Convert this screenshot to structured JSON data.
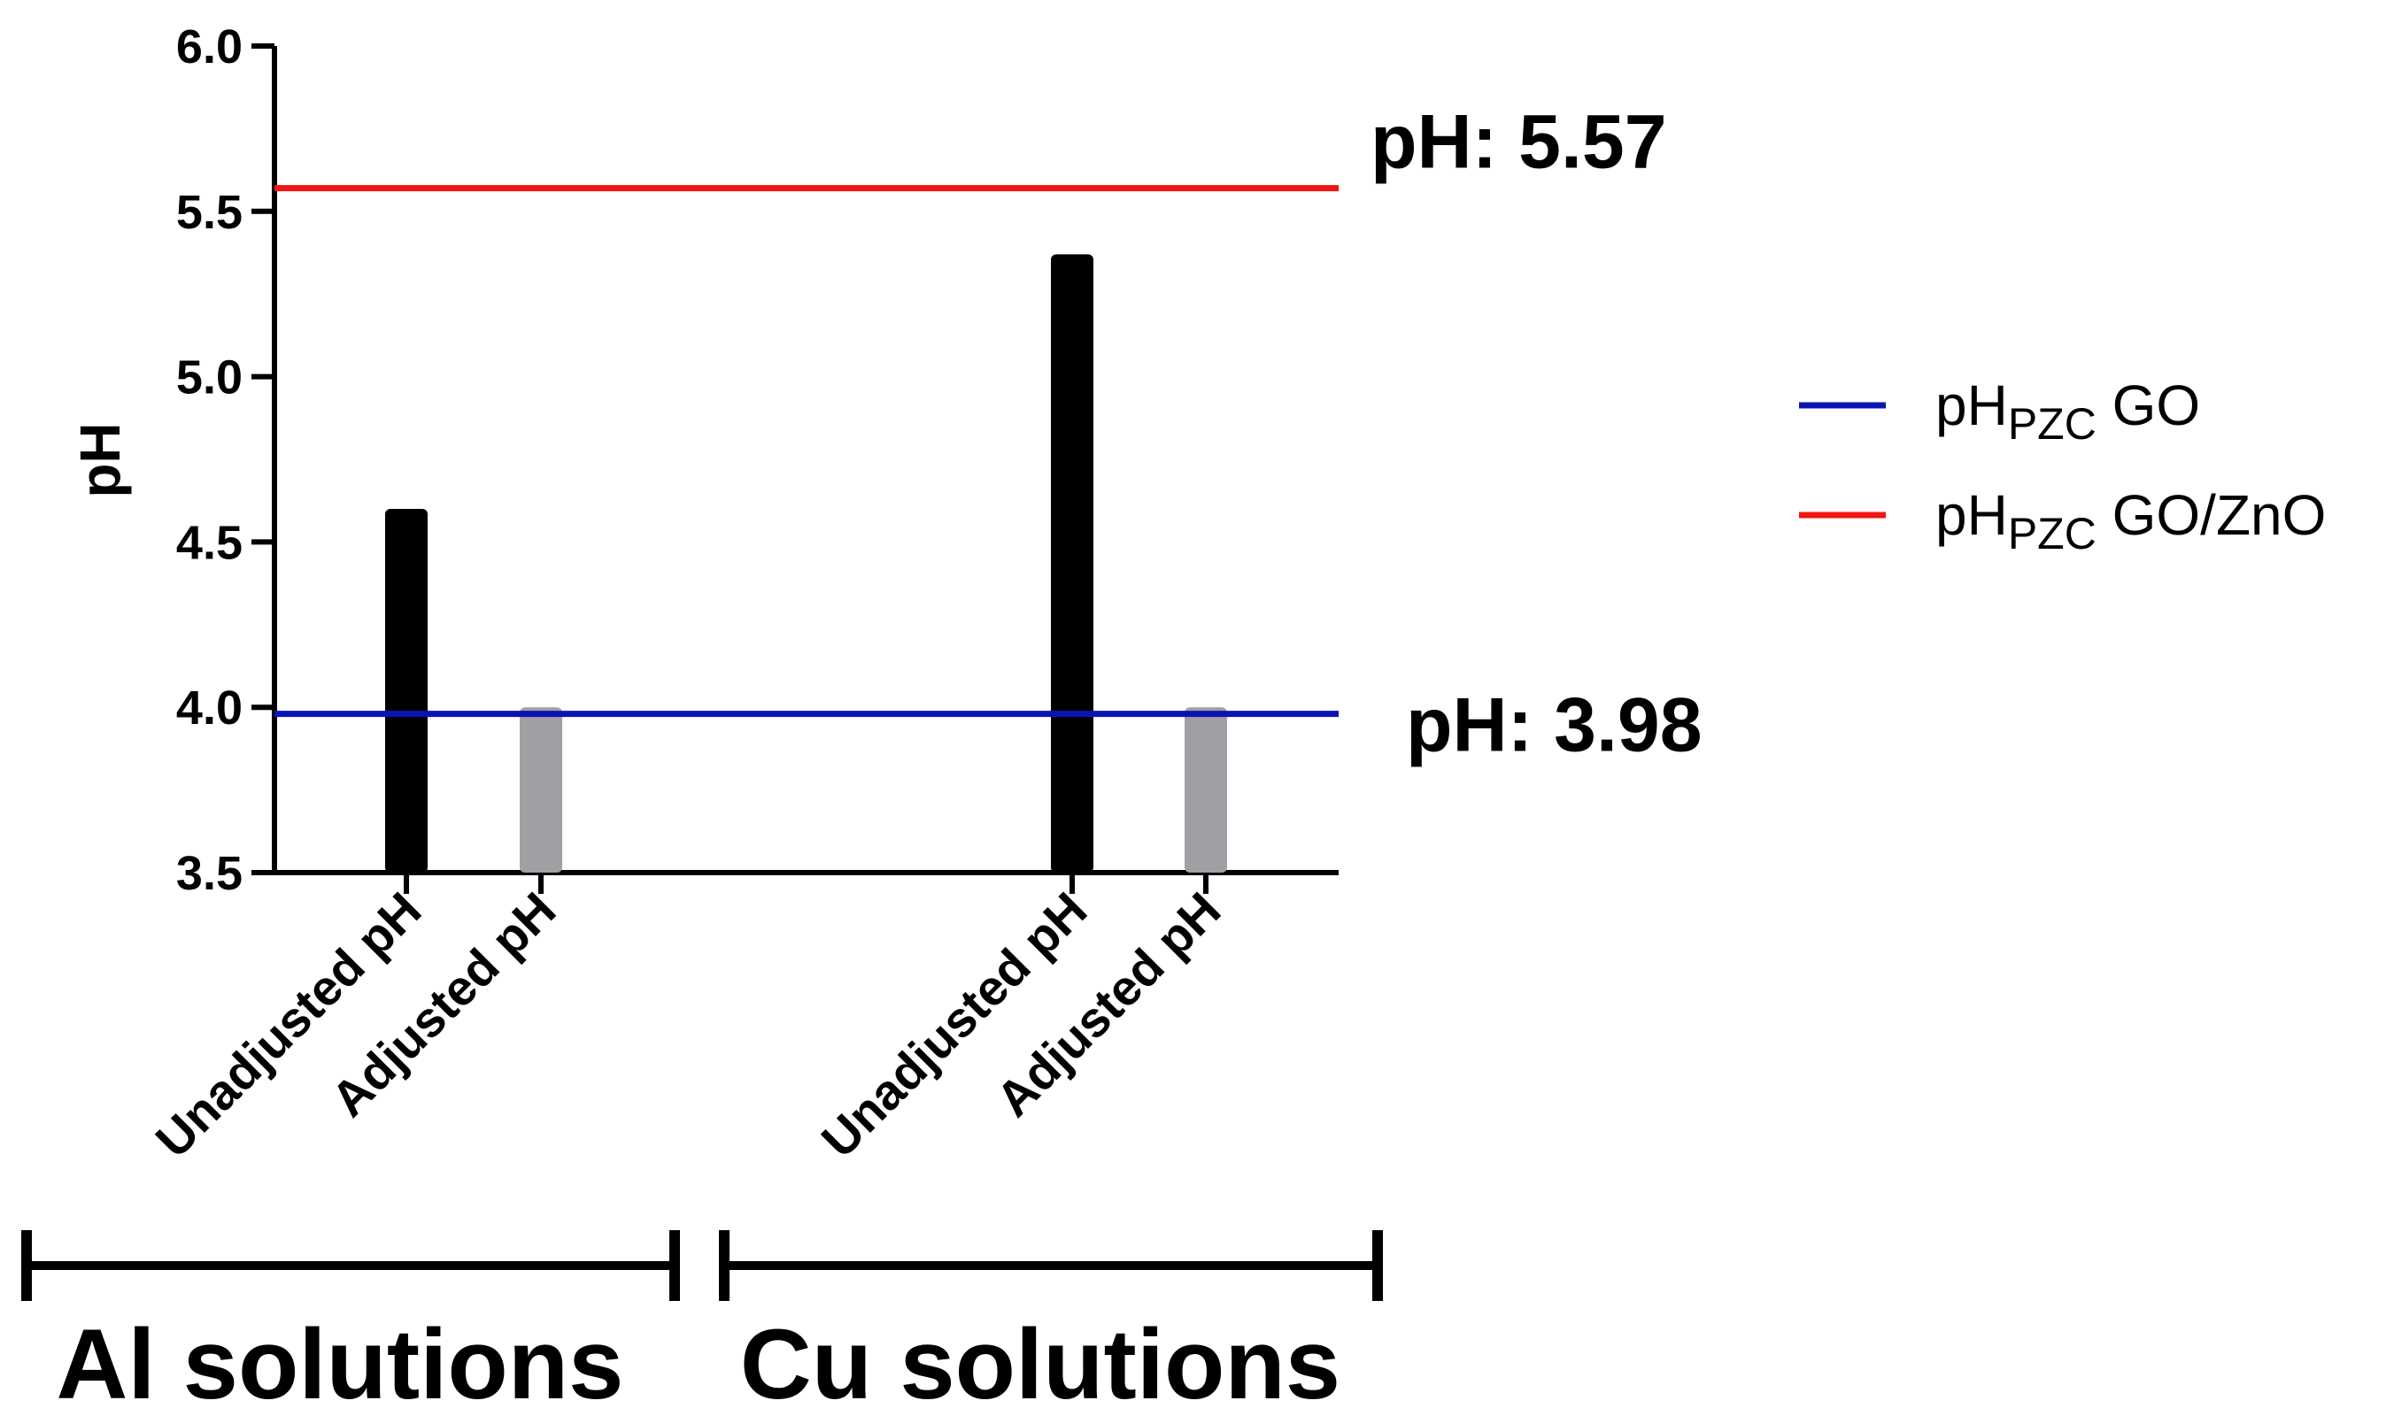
{
  "chart_data": {
    "type": "bar",
    "xlabel": "",
    "ylabel": "pH",
    "ylim": [
      3.5,
      6.0
    ],
    "yticks": [
      "3.5",
      "4.0",
      "4.5",
      "5.0",
      "5.5",
      "6.0"
    ],
    "groups": [
      {
        "name": "Al solutions",
        "bars": [
          {
            "label": "Unadjusted pH",
            "value": 4.6,
            "color": "#000000"
          },
          {
            "label": "Adjusted pH",
            "value": 4.0,
            "color": "#a0a0a4"
          }
        ]
      },
      {
        "name": "Cu solutions",
        "bars": [
          {
            "label": "Unadjusted pH",
            "value": 5.37,
            "color": "#000000"
          },
          {
            "label": "Adjusted pH",
            "value": 4.0,
            "color": "#a0a0a4"
          }
        ]
      }
    ],
    "reference_lines": [
      {
        "name_main": "pH",
        "name_sub": "PZC",
        "name_rest": " GO",
        "value": 3.98,
        "color": "#0a14b4",
        "annotation": "pH: 3.98"
      },
      {
        "name_main": "pH",
        "name_sub": "PZC",
        "name_rest": " GO/ZnO",
        "value": 5.57,
        "color": "#f01414",
        "annotation": "pH: 5.57"
      }
    ],
    "legend_position": "right",
    "grid": false
  }
}
